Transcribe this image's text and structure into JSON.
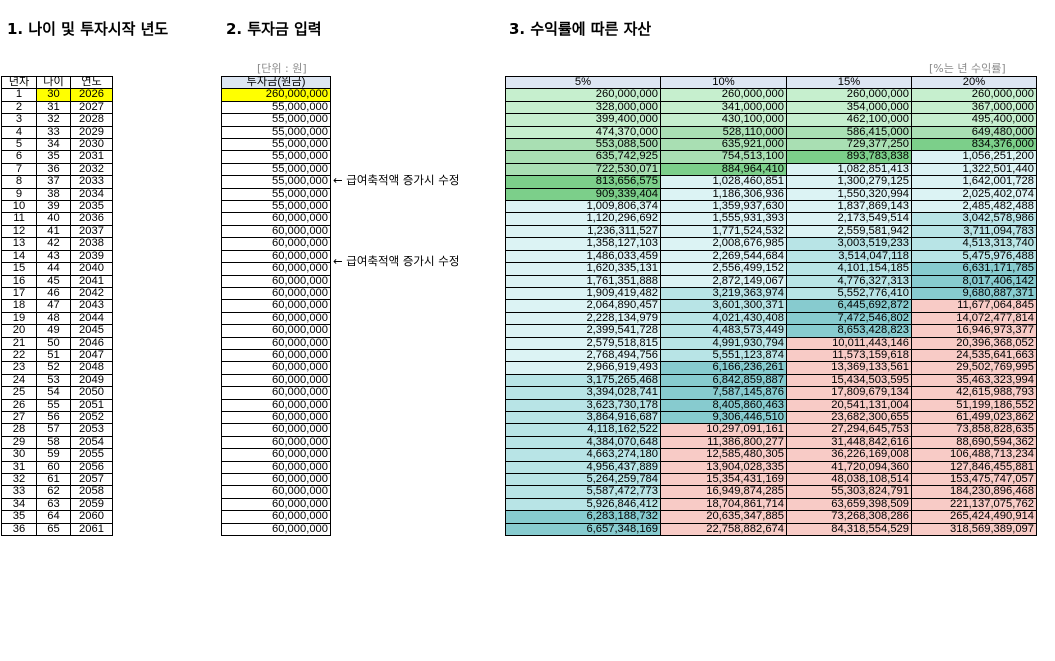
{
  "sections": {
    "s1": "1. 나이 및 투자시작 년도",
    "s2": "2. 투자금 입력",
    "s3": "3. 수익률에 따른 자산"
  },
  "notes": {
    "unit": "[단위 : 원]",
    "rate_note": "[%는 년 수익률]"
  },
  "memos": {
    "row6": "← 급여축적액 증가시 수정",
    "row11": "← 급여축적액 증가시 수정"
  },
  "headers": {
    "year_idx": "년차",
    "age": "나이",
    "year": "연도",
    "investment": "투자금(원금)",
    "rates": [
      "5%",
      "10%",
      "15%",
      "20%"
    ]
  },
  "colors": {
    "input_yellow": "#ffff00",
    "green_light": "#c6efce",
    "green_mid": "#a9dfb3",
    "green_dark": "#7ccf8a",
    "teal_light": "#dcf3f4",
    "teal_mid": "#b8e4e6",
    "teal_dark": "#87cbcf",
    "pink": "#f8cbc6"
  },
  "ages": [
    "30",
    "31",
    "32",
    "33",
    "34",
    "35",
    "36",
    "37",
    "38",
    "39",
    "40",
    "41",
    "42",
    "43",
    "44",
    "45",
    "46",
    "47",
    "48",
    "49",
    "50",
    "51",
    "52",
    "53",
    "54",
    "55",
    "56",
    "57",
    "58",
    "59",
    "60",
    "61",
    "62",
    "63",
    "64",
    "65"
  ],
  "years": [
    "2026",
    "2027",
    "2028",
    "2029",
    "2030",
    "2031",
    "2032",
    "2033",
    "2034",
    "2035",
    "2036",
    "2037",
    "2038",
    "2039",
    "2040",
    "2041",
    "2042",
    "2043",
    "2044",
    "2045",
    "2046",
    "2047",
    "2048",
    "2049",
    "2050",
    "2051",
    "2052",
    "2053",
    "2054",
    "2055",
    "2056",
    "2057",
    "2058",
    "2059",
    "2060",
    "2061"
  ],
  "investments": [
    "260,000,000",
    "55,000,000",
    "55,000,000",
    "55,000,000",
    "55,000,000",
    "55,000,000",
    "55,000,000",
    "55,000,000",
    "55,000,000",
    "55,000,000",
    "60,000,000",
    "60,000,000",
    "60,000,000",
    "60,000,000",
    "60,000,000",
    "60,000,000",
    "60,000,000",
    "60,000,000",
    "60,000,000",
    "60,000,000",
    "60,000,000",
    "60,000,000",
    "60,000,000",
    "60,000,000",
    "60,000,000",
    "60,000,000",
    "60,000,000",
    "60,000,000",
    "60,000,000",
    "60,000,000",
    "60,000,000",
    "60,000,000",
    "60,000,000",
    "60,000,000",
    "60,000,000",
    "60,000,000"
  ],
  "assets": [
    [
      "260,000,000",
      "260,000,000",
      "260,000,000",
      "260,000,000"
    ],
    [
      "328,000,000",
      "341,000,000",
      "354,000,000",
      "367,000,000"
    ],
    [
      "399,400,000",
      "430,100,000",
      "462,100,000",
      "495,400,000"
    ],
    [
      "474,370,000",
      "528,110,000",
      "586,415,000",
      "649,480,000"
    ],
    [
      "553,088,500",
      "635,921,000",
      "729,377,250",
      "834,376,000"
    ],
    [
      "635,742,925",
      "754,513,100",
      "893,783,838",
      "1,056,251,200"
    ],
    [
      "722,530,071",
      "884,964,410",
      "1,082,851,413",
      "1,322,501,440"
    ],
    [
      "813,656,575",
      "1,028,460,851",
      "1,300,279,125",
      "1,642,001,728"
    ],
    [
      "909,339,404",
      "1,186,306,936",
      "1,550,320,994",
      "2,025,402,074"
    ],
    [
      "1,009,806,374",
      "1,359,937,630",
      "1,837,869,143",
      "2,485,482,488"
    ],
    [
      "1,120,296,692",
      "1,555,931,393",
      "2,173,549,514",
      "3,042,578,986"
    ],
    [
      "1,236,311,527",
      "1,771,524,532",
      "2,559,581,942",
      "3,711,094,783"
    ],
    [
      "1,358,127,103",
      "2,008,676,985",
      "3,003,519,233",
      "4,513,313,740"
    ],
    [
      "1,486,033,459",
      "2,269,544,684",
      "3,514,047,118",
      "5,475,976,488"
    ],
    [
      "1,620,335,131",
      "2,556,499,152",
      "4,101,154,185",
      "6,631,171,785"
    ],
    [
      "1,761,351,888",
      "2,872,149,067",
      "4,776,327,313",
      "8,017,406,142"
    ],
    [
      "1,909,419,482",
      "3,219,363,974",
      "5,552,776,410",
      "9,680,887,371"
    ],
    [
      "2,064,890,457",
      "3,601,300,371",
      "6,445,692,872",
      "11,677,064,845"
    ],
    [
      "2,228,134,979",
      "4,021,430,408",
      "7,472,546,802",
      "14,072,477,814"
    ],
    [
      "2,399,541,728",
      "4,483,573,449",
      "8,653,428,823",
      "16,946,973,377"
    ],
    [
      "2,579,518,815",
      "4,991,930,794",
      "10,011,443,146",
      "20,396,368,052"
    ],
    [
      "2,768,494,756",
      "5,551,123,874",
      "11,573,159,618",
      "24,535,641,663"
    ],
    [
      "2,966,919,493",
      "6,166,236,261",
      "13,369,133,561",
      "29,502,769,995"
    ],
    [
      "3,175,265,468",
      "6,842,859,887",
      "15,434,503,595",
      "35,463,323,994"
    ],
    [
      "3,394,028,741",
      "7,587,145,876",
      "17,809,679,134",
      "42,615,988,793"
    ],
    [
      "3,623,730,178",
      "8,405,860,463",
      "20,541,131,004",
      "51,199,186,552"
    ],
    [
      "3,864,916,687",
      "9,306,446,510",
      "23,682,300,655",
      "61,499,023,862"
    ],
    [
      "4,118,162,522",
      "10,297,091,161",
      "27,294,645,753",
      "73,858,828,635"
    ],
    [
      "4,384,070,648",
      "11,386,800,277",
      "31,448,842,616",
      "88,690,594,362"
    ],
    [
      "4,663,274,180",
      "12,585,480,305",
      "36,226,169,008",
      "106,488,713,234"
    ],
    [
      "4,956,437,889",
      "13,904,028,335",
      "41,720,094,360",
      "127,846,455,881"
    ],
    [
      "5,264,259,784",
      "15,354,431,169",
      "48,038,108,514",
      "153,475,747,057"
    ],
    [
      "5,587,472,773",
      "16,949,874,285",
      "55,303,824,791",
      "184,230,896,468"
    ],
    [
      "5,926,846,412",
      "18,704,861,714",
      "63,659,398,509",
      "221,137,075,762"
    ],
    [
      "6,283,188,732",
      "20,635,347,885",
      "73,268,308,286",
      "265,424,490,914"
    ],
    [
      "6,657,348,169",
      "22,758,882,674",
      "84,318,554,529",
      "318,569,389,097"
    ]
  ]
}
